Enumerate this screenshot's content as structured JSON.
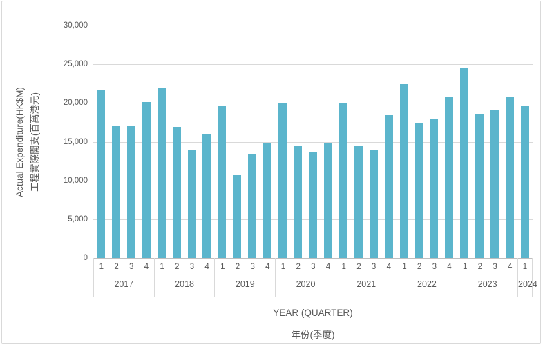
{
  "chart_data": {
    "type": "bar",
    "title": "",
    "ylabel_line1": "Actual Expenditure(HK$M)",
    "ylabel_line2": "工程實際開支(百萬港元)",
    "xlabel_line1": "YEAR (QUARTER)",
    "xlabel_line2": "年份(季度)",
    "ylim": [
      0,
      30000
    ],
    "ytick_interval": 5000,
    "ytick_labels": [
      "30,000",
      "25,000",
      "20,000",
      "15,000",
      "10,000",
      "5,000",
      "0"
    ],
    "grid": true,
    "legend": "none",
    "colors": {
      "bar": "#5BB5CC",
      "gridline": "#D9D9D9",
      "axis_line": "#BFBFBF",
      "text": "#595959",
      "frame_border": "#D9D9D9"
    },
    "groups": [
      {
        "year": "2017",
        "quarters": [
          "1",
          "2",
          "3",
          "4"
        ],
        "values": [
          21600,
          17100,
          17000,
          20100
        ]
      },
      {
        "year": "2018",
        "quarters": [
          "1",
          "2",
          "3",
          "4"
        ],
        "values": [
          21900,
          16900,
          13900,
          16000
        ]
      },
      {
        "year": "2019",
        "quarters": [
          "1",
          "2",
          "3",
          "4"
        ],
        "values": [
          19600,
          10700,
          13400,
          14900
        ]
      },
      {
        "year": "2020",
        "quarters": [
          "1",
          "2",
          "3",
          "4"
        ],
        "values": [
          20000,
          14400,
          13700,
          14800
        ]
      },
      {
        "year": "2021",
        "quarters": [
          "1",
          "2",
          "3",
          "4"
        ],
        "values": [
          20000,
          14500,
          13900,
          18400
        ]
      },
      {
        "year": "2022",
        "quarters": [
          "1",
          "2",
          "3",
          "4"
        ],
        "values": [
          22400,
          17400,
          17900,
          20800
        ]
      },
      {
        "year": "2023",
        "quarters": [
          "1",
          "2",
          "3",
          "4"
        ],
        "values": [
          24500,
          18500,
          19100,
          20800
        ]
      },
      {
        "year": "2024",
        "quarters": [
          "1"
        ],
        "values": [
          19600
        ]
      }
    ]
  }
}
